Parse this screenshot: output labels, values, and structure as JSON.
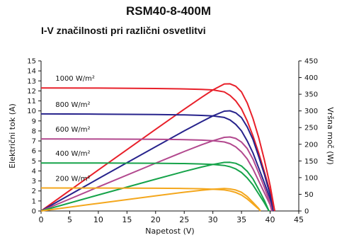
{
  "colors": {
    "1000": "#e8202a",
    "800": "#27238c",
    "600": "#b2488e",
    "400": "#16a34a",
    "200": "#f4a71d",
    "axis": "#111111"
  },
  "chart_data": {
    "type": "line",
    "title": "RSM40-8-400M",
    "subtitle": "I-V značilnosti pri različni osvetlitvi",
    "xlabel": "Napetost (V)",
    "ylabel_left": "Električni tok (A)",
    "ylabel_right": "Vršna moč (W)",
    "x_ticks": [
      "0",
      "5",
      "10",
      "15",
      "20",
      "25",
      "30",
      "35",
      "40",
      "45"
    ],
    "y_left_ticks": [
      "0",
      "1",
      "2",
      "3",
      "4",
      "5",
      "6",
      "7",
      "8",
      "9",
      "10",
      "11",
      "12",
      "13",
      "14",
      "15"
    ],
    "y_right_ticks": [
      "0",
      "50",
      "100",
      "150",
      "200",
      "250",
      "300",
      "350",
      "400",
      "450"
    ],
    "xlim": [
      0,
      45
    ],
    "ylim_left": [
      0,
      15
    ],
    "ylim_right": [
      0,
      450
    ],
    "grid": false,
    "series": [
      {
        "irradiance": "1000",
        "label": "1000 W/m²",
        "iv": [
          [
            0,
            12.3
          ],
          [
            10,
            12.28
          ],
          [
            20,
            12.24
          ],
          [
            25,
            12.2
          ],
          [
            28,
            12.15
          ],
          [
            30,
            12.1
          ],
          [
            32,
            11.9
          ],
          [
            33,
            11.55
          ],
          [
            34,
            11.0
          ],
          [
            35,
            10.2
          ],
          [
            36,
            9.0
          ],
          [
            37,
            7.5
          ],
          [
            38,
            5.8
          ],
          [
            39,
            3.9
          ],
          [
            40,
            1.9
          ],
          [
            40.8,
            0
          ]
        ],
        "pv": [
          [
            0,
            0
          ],
          [
            10,
            122.8
          ],
          [
            20,
            244.8
          ],
          [
            25,
            305
          ],
          [
            28,
            340.2
          ],
          [
            30,
            363
          ],
          [
            32,
            380.8
          ],
          [
            33,
            381.2
          ],
          [
            34,
            374
          ],
          [
            35,
            357
          ],
          [
            36,
            324
          ],
          [
            37,
            277.5
          ],
          [
            38,
            220.4
          ],
          [
            39,
            152.1
          ],
          [
            40,
            76
          ],
          [
            40.8,
            0
          ]
        ]
      },
      {
        "irradiance": "800",
        "label": "800 W/m²",
        "iv": [
          [
            0,
            9.7
          ],
          [
            10,
            9.68
          ],
          [
            20,
            9.64
          ],
          [
            25,
            9.6
          ],
          [
            28,
            9.55
          ],
          [
            30,
            9.5
          ],
          [
            32,
            9.35
          ],
          [
            33,
            9.1
          ],
          [
            34,
            8.65
          ],
          [
            35,
            8.0
          ],
          [
            36,
            7.0
          ],
          [
            37,
            5.8
          ],
          [
            38,
            4.3
          ],
          [
            39,
            2.8
          ],
          [
            40,
            1.2
          ],
          [
            40.5,
            0
          ]
        ],
        "pv": [
          [
            0,
            0
          ],
          [
            10,
            96.8
          ],
          [
            20,
            192.8
          ],
          [
            25,
            240
          ],
          [
            28,
            267.4
          ],
          [
            30,
            285
          ],
          [
            32,
            299.2
          ],
          [
            33,
            300.3
          ],
          [
            34,
            294.1
          ],
          [
            35,
            280
          ],
          [
            36,
            252
          ],
          [
            37,
            214.6
          ],
          [
            38,
            163.4
          ],
          [
            39,
            109.2
          ],
          [
            40,
            48
          ],
          [
            40.5,
            0
          ]
        ]
      },
      {
        "irradiance": "600",
        "label": "600 W/m²",
        "iv": [
          [
            0,
            7.2
          ],
          [
            10,
            7.19
          ],
          [
            20,
            7.16
          ],
          [
            25,
            7.13
          ],
          [
            28,
            7.08
          ],
          [
            30,
            7.02
          ],
          [
            32,
            6.9
          ],
          [
            33,
            6.72
          ],
          [
            34,
            6.4
          ],
          [
            35,
            5.9
          ],
          [
            36,
            5.2
          ],
          [
            37,
            4.2
          ],
          [
            38,
            3.0
          ],
          [
            39,
            1.8
          ],
          [
            40,
            0.6
          ],
          [
            40.3,
            0
          ]
        ],
        "pv": [
          [
            0,
            0
          ],
          [
            10,
            71.9
          ],
          [
            20,
            143.2
          ],
          [
            25,
            178.3
          ],
          [
            28,
            198.2
          ],
          [
            30,
            210.6
          ],
          [
            32,
            220.8
          ],
          [
            33,
            221.8
          ],
          [
            34,
            217.6
          ],
          [
            35,
            206.5
          ],
          [
            36,
            187.2
          ],
          [
            37,
            155.4
          ],
          [
            38,
            114
          ],
          [
            39,
            70.2
          ],
          [
            40,
            24
          ],
          [
            40.3,
            0
          ]
        ]
      },
      {
        "irradiance": "400",
        "label": "400 W/m²",
        "iv": [
          [
            0,
            4.8
          ],
          [
            10,
            4.79
          ],
          [
            20,
            4.77
          ],
          [
            25,
            4.74
          ],
          [
            28,
            4.7
          ],
          [
            30,
            4.65
          ],
          [
            32,
            4.55
          ],
          [
            33,
            4.42
          ],
          [
            34,
            4.2
          ],
          [
            35,
            3.85
          ],
          [
            36,
            3.3
          ],
          [
            37,
            2.6
          ],
          [
            38,
            1.7
          ],
          [
            39,
            0.8
          ],
          [
            39.8,
            0
          ]
        ],
        "pv": [
          [
            0,
            0
          ],
          [
            10,
            47.9
          ],
          [
            20,
            95.4
          ],
          [
            25,
            118.5
          ],
          [
            28,
            131.6
          ],
          [
            30,
            139.5
          ],
          [
            32,
            145.6
          ],
          [
            33,
            145.9
          ],
          [
            34,
            142.8
          ],
          [
            35,
            134.8
          ],
          [
            36,
            118.8
          ],
          [
            37,
            96.2
          ],
          [
            38,
            64.6
          ],
          [
            39,
            31.2
          ],
          [
            39.8,
            0
          ]
        ]
      },
      {
        "irradiance": "200",
        "label": "200 W/m²",
        "iv": [
          [
            0,
            2.3
          ],
          [
            10,
            2.29
          ],
          [
            20,
            2.27
          ],
          [
            25,
            2.25
          ],
          [
            28,
            2.22
          ],
          [
            30,
            2.18
          ],
          [
            32,
            2.1
          ],
          [
            33,
            2.0
          ],
          [
            34,
            1.85
          ],
          [
            35,
            1.6
          ],
          [
            36,
            1.2
          ],
          [
            37,
            0.7
          ],
          [
            38,
            0.2
          ],
          [
            38.3,
            0
          ]
        ],
        "pv": [
          [
            0,
            0
          ],
          [
            10,
            22.9
          ],
          [
            20,
            45.4
          ],
          [
            25,
            56.3
          ],
          [
            28,
            62.2
          ],
          [
            30,
            65.4
          ],
          [
            32,
            67.2
          ],
          [
            33,
            66
          ],
          [
            34,
            62.9
          ],
          [
            35,
            56
          ],
          [
            36,
            43.2
          ],
          [
            37,
            25.9
          ],
          [
            38,
            7.6
          ],
          [
            38.3,
            0
          ]
        ]
      }
    ]
  }
}
